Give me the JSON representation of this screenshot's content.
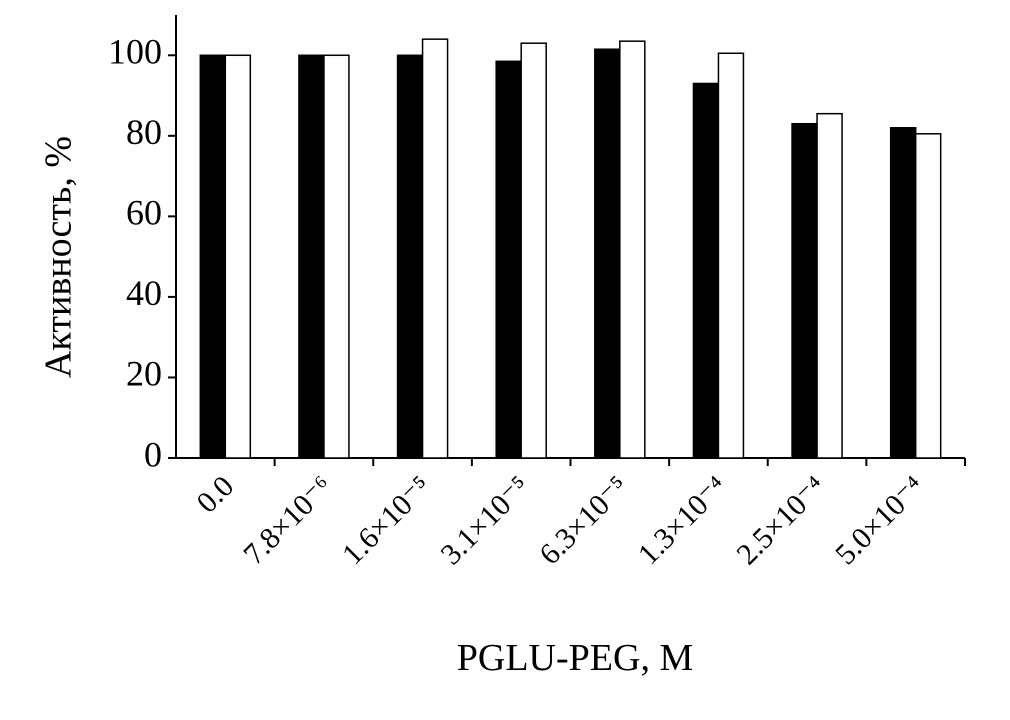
{
  "chart_data": {
    "type": "bar",
    "y_label": "Активность, %",
    "x_label": "PGLU-PEG, M",
    "categories": [
      "0.0",
      "7.8×10⁻⁶",
      "1.6×10⁻⁵",
      "3.1×10⁻⁵",
      "6.3×10⁻⁵",
      "1.3×10⁻⁴",
      "2.5×10⁻⁴",
      "5.0×10⁻⁴"
    ],
    "series": [
      {
        "color": "#000000",
        "values": [
          100,
          100,
          100,
          98.5,
          101.5,
          93,
          83,
          82
        ]
      },
      {
        "color": "#ffffff",
        "values": [
          100,
          100,
          104,
          103,
          103.5,
          100.5,
          85.5,
          80.5
        ]
      }
    ],
    "ylim": [
      0,
      110
    ],
    "yticks": [
      0,
      20,
      40,
      60,
      80,
      100
    ]
  }
}
